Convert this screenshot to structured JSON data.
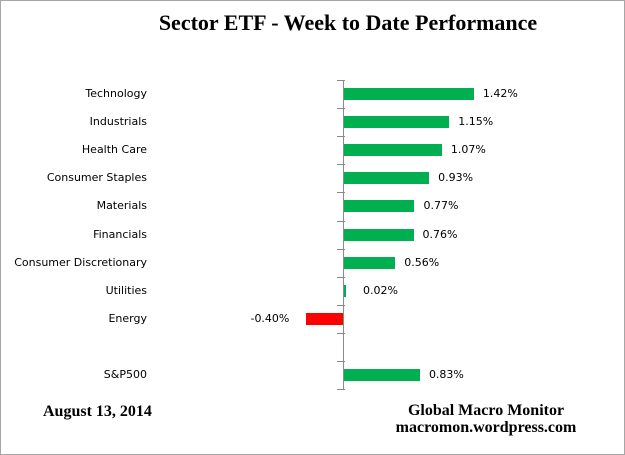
{
  "window": {
    "background_color": "#FFFFFF",
    "border_color": "#A6A6A6"
  },
  "chart_data": {
    "type": "bar",
    "orientation": "horizontal",
    "title": "Sector ETF - Week to Date Performance",
    "categories": [
      "Technology",
      "Industrials",
      "Health Care",
      "Consumer Staples",
      "Materials",
      "Financials",
      "Consumer Discretionary",
      "Utilities",
      "Energy",
      "",
      "S&P500"
    ],
    "values": [
      1.42,
      1.15,
      1.07,
      0.93,
      0.77,
      0.76,
      0.56,
      0.02,
      -0.4,
      null,
      0.83
    ],
    "value_labels": [
      "1.42%",
      "1.15%",
      "1.07%",
      "0.93%",
      "0.77%",
      "0.76%",
      "0.56%",
      "0.02%",
      "-0.40%",
      null,
      "0.83%"
    ],
    "xlabel": "",
    "ylabel": "",
    "xlim": [
      -2.1,
      2.9
    ],
    "grid": false,
    "legend_position": "none",
    "value_axis_tick_labels_visible": false,
    "positive_color": "#00B050",
    "negative_color": "#FF0000",
    "axis_color": "#8A8A8A",
    "label_color": "#000000"
  },
  "footer": {
    "date": "August 13, 2014",
    "credit_line1": "Global Macro Monitor",
    "credit_line2": "macromon.wordpress.com"
  }
}
